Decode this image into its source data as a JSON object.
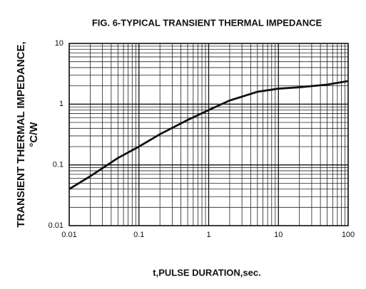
{
  "chart_data": {
    "type": "line",
    "title": "FIG. 6-TYPICAL TRANSIENT THERMAL IMPEDANCE",
    "xlabel": "t,PULSE DURATION,sec.",
    "ylabel": [
      "TRANSIENT THERMAL IMPEDANCE,",
      "°C/W"
    ],
    "x": [
      0.01,
      0.02,
      0.05,
      0.1,
      0.2,
      0.5,
      1,
      2,
      5,
      10,
      20,
      50,
      100
    ],
    "values": [
      0.04,
      0.065,
      0.13,
      0.2,
      0.32,
      0.55,
      0.8,
      1.15,
      1.6,
      1.8,
      1.9,
      2.1,
      2.4
    ],
    "color": "#111111",
    "xscale": "log",
    "yscale": "log",
    "xlim": [
      0.01,
      100
    ],
    "ylim": [
      0.01,
      10
    ],
    "xticks": [
      0.01,
      0.1,
      1,
      10,
      100
    ],
    "yticks": [
      0.01,
      0.1,
      1,
      10
    ],
    "grid": true,
    "minor_grid": true
  }
}
